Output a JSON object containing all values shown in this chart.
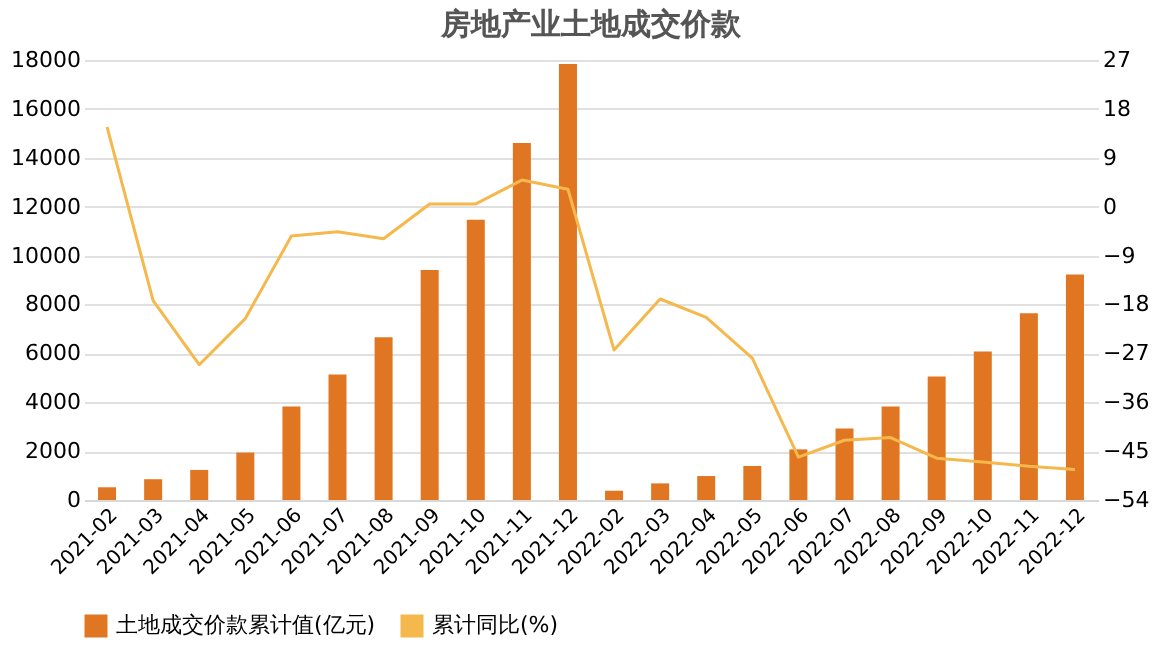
{
  "chart_data": {
    "type": "bar",
    "title": "房地产业土地成交价款",
    "categories": [
      "2021-02",
      "2021-03",
      "2021-04",
      "2021-05",
      "2021-06",
      "2021-07",
      "2021-08",
      "2021-09",
      "2021-10",
      "2021-11",
      "2021-12",
      "2022-02",
      "2022-03",
      "2022-04",
      "2022-05",
      "2022-06",
      "2022-07",
      "2022-08",
      "2022-09",
      "2022-10",
      "2022-11",
      "2022-12"
    ],
    "series": [
      {
        "name": "土地成交价款累计值(亿元)",
        "color": "#e07622",
        "values": [
          520,
          850,
          1230,
          1940,
          3820,
          5130,
          6660,
          9410,
          11460,
          14600,
          17840,
          380,
          680,
          980,
          1390,
          2070,
          2920,
          3820,
          5050,
          6080,
          7640,
          9220
        ]
      },
      {
        "name": "累计同比(%)",
        "type": "line",
        "axis": "y2",
        "color": "#f5b84c",
        "values": [
          14.7,
          -17.3,
          -29.1,
          -20.6,
          -5.4,
          -4.6,
          -5.9,
          0.5,
          0.5,
          4.9,
          3.2,
          -26.4,
          -17,
          -20.4,
          -27.9,
          -46.1,
          -43,
          -42.5,
          -46.3,
          -47,
          -47.8,
          -48.4
        ]
      }
    ],
    "ylim": [
      0,
      18000
    ],
    "yticks": [
      0,
      2000,
      4000,
      6000,
      8000,
      10000,
      12000,
      14000,
      16000,
      18000
    ],
    "y2lim": [
      -54,
      27
    ],
    "y2ticks": [
      -54,
      -45,
      -36,
      -27,
      -18,
      -9,
      0,
      9,
      18,
      27
    ],
    "grid": "y",
    "legend": "bottom"
  }
}
